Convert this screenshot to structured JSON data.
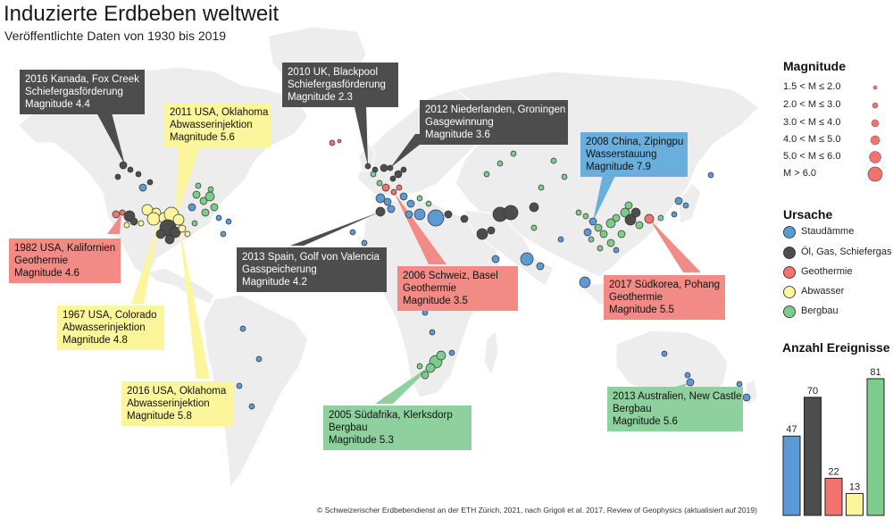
{
  "title": "Induzierte Erdbeben weltweit",
  "subtitle": "Veröffentlichte Daten von 1930 bis 2019",
  "colors": {
    "Staudämme": "#5b9bd5",
    "Öl, Gas, Schiefergas": "#4d4d4d",
    "Geothermie": "#f2726c",
    "Abwasser": "#fbf59b",
    "Bergbau": "#7ccc8c"
  },
  "annotations": [
    {
      "lines": [
        "2016 Kanada, Fox Creek",
        "Schiefergasförderung",
        "Magnitude 4.4"
      ],
      "cat": "dark"
    },
    {
      "lines": [
        "2010 UK, Blackpool",
        "Schiefergasförderung",
        "Magnitude 2.3"
      ],
      "cat": "dark"
    },
    {
      "lines": [
        "2011 USA, Oklahoma",
        "Abwasserinjektion",
        "Magnitude 5.6"
      ],
      "cat": "yellow"
    },
    {
      "lines": [
        "2012 Niederlanden, Groningen",
        "Gasgewinnung",
        "Magnitude 3.6"
      ],
      "cat": "dark"
    },
    {
      "lines": [
        "2008 China, Zipingpu",
        "Wasserstauung",
        "Magnitude 7.9"
      ],
      "cat": "blue"
    },
    {
      "lines": [
        "1982 USA, Kalifornien",
        "Geothermie",
        "Magnitude 4.6"
      ],
      "cat": "red"
    },
    {
      "lines": [
        "2013 Spain, Golf von Valencia",
        "Gasspeicherung",
        "Magnitude 4.2"
      ],
      "cat": "dark"
    },
    {
      "lines": [
        "2006 Schweiz, Basel",
        "Geothermie",
        "Magnitude 3.5"
      ],
      "cat": "red"
    },
    {
      "lines": [
        "2017 Südkorea, Pohang",
        "Geothermie",
        "Magnitude 5.5"
      ],
      "cat": "red"
    },
    {
      "lines": [
        "1967 USA, Colorado",
        "Abwasserinjektion",
        "Magnitude 4.8"
      ],
      "cat": "yellow"
    },
    {
      "lines": [
        "2016 USA, Oklahoma",
        "Abwasserinjektion",
        "Magnitude 5.8"
      ],
      "cat": "yellow"
    },
    {
      "lines": [
        "2005 Südafrika, Klerksdorp",
        "Bergbau",
        "Magnitude 5.3"
      ],
      "cat": "green"
    },
    {
      "lines": [
        "2013 Australien, New Castle",
        "Bergbau",
        "Magnitude 5.6"
      ],
      "cat": "green"
    }
  ],
  "magnitude_legend": {
    "title": "Magnitude",
    "items": [
      "1.5 < M ≤ 2.0",
      "2.0 < M ≤ 3.0",
      "3.0 < M ≤ 4.0",
      "4.0 < M ≤ 5.0",
      "5.0 < M ≤ 6.0",
      "M > 6.0"
    ]
  },
  "cause_legend": {
    "title": "Ursache",
    "items": [
      "Staudämme",
      "Öl, Gas, Schiefergas",
      "Geothermie",
      "Abwasser",
      "Bergbau"
    ]
  },
  "chart_data": {
    "type": "bar",
    "title": "Anzahl Ereignisse",
    "categories": [
      "Staudämme",
      "Öl, Gas, Schiefergas",
      "Geothermie",
      "Abwasser",
      "Bergbau"
    ],
    "values": [
      47,
      70,
      22,
      13,
      81
    ],
    "ylim": [
      0,
      81
    ]
  },
  "credit": "© Schweizerischer Erdbebendienst an der ETH Zürich, 2021, nach Grigoli et al. 2017, Review of Geophysics (aktualisiert auf 2019)"
}
